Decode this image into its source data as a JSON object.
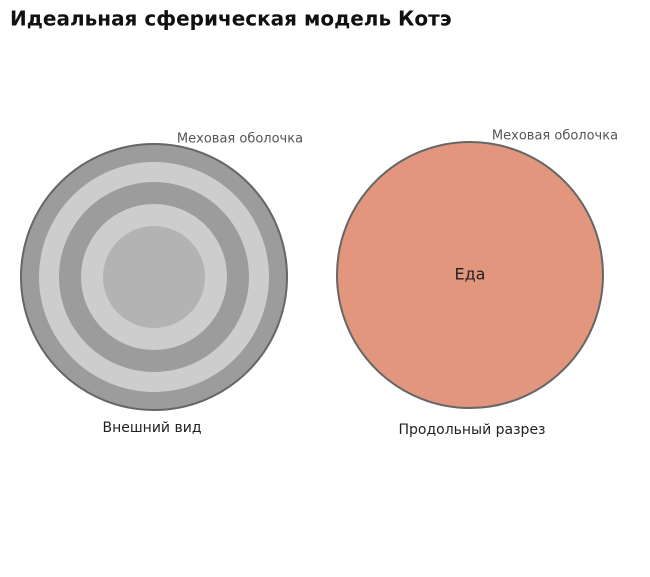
{
  "title": "Идеальная сферическая модель Котэ",
  "left": {
    "shell_label": "Меховая оболочка",
    "caption": "Внешний вид"
  },
  "right": {
    "shell_label": "Меховая оболочка",
    "center_label": "Еда",
    "caption": "Продольный разрез"
  }
}
